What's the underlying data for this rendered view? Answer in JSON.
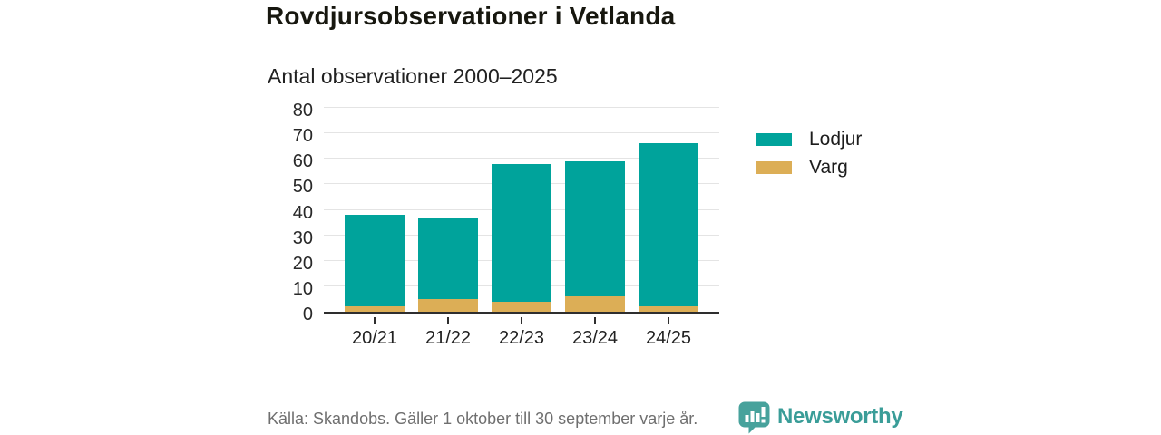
{
  "title": "Rovdjursobservationer i Vetlanda",
  "subtitle": "Antal observationer 2000–2025",
  "source": "Källa: Skandobs. Gäller 1 oktober till 30 september varje år.",
  "branding": {
    "name": "Newsworthy",
    "icon": "bar-chart-speech-bubble",
    "color": "#3a9d98",
    "icon_color": "#47a29c"
  },
  "colors": {
    "lodjur": "#00a39b",
    "varg": "#dcae56",
    "gridline": "#e4e4e4",
    "axis": "#2e2e2e",
    "title_text": "#17170f",
    "source_text": "#6f6f6f"
  },
  "chart_data": {
    "type": "bar",
    "stacked": true,
    "title": "Rovdjursobservationer i Vetlanda",
    "subtitle": "Antal observationer 2000–2025",
    "categories": [
      "20/21",
      "21/22",
      "22/23",
      "23/24",
      "24/25"
    ],
    "series": [
      {
        "name": "Varg",
        "color": "#dcae56",
        "values": [
          2,
          5,
          4,
          6,
          2
        ]
      },
      {
        "name": "Lodjur",
        "color": "#00a39b",
        "values": [
          36,
          32,
          54,
          53,
          64
        ]
      }
    ],
    "totals": [
      38,
      37,
      58,
      59,
      66
    ],
    "xlabel": "",
    "ylabel": "",
    "ylim": [
      0,
      80
    ],
    "yticks": [
      0,
      10,
      20,
      30,
      40,
      50,
      60,
      70,
      80
    ],
    "grid": true,
    "legend_position": "right",
    "legend": [
      {
        "label": "Lodjur",
        "color": "#00a39b"
      },
      {
        "label": "Varg",
        "color": "#dcae56"
      }
    ]
  }
}
